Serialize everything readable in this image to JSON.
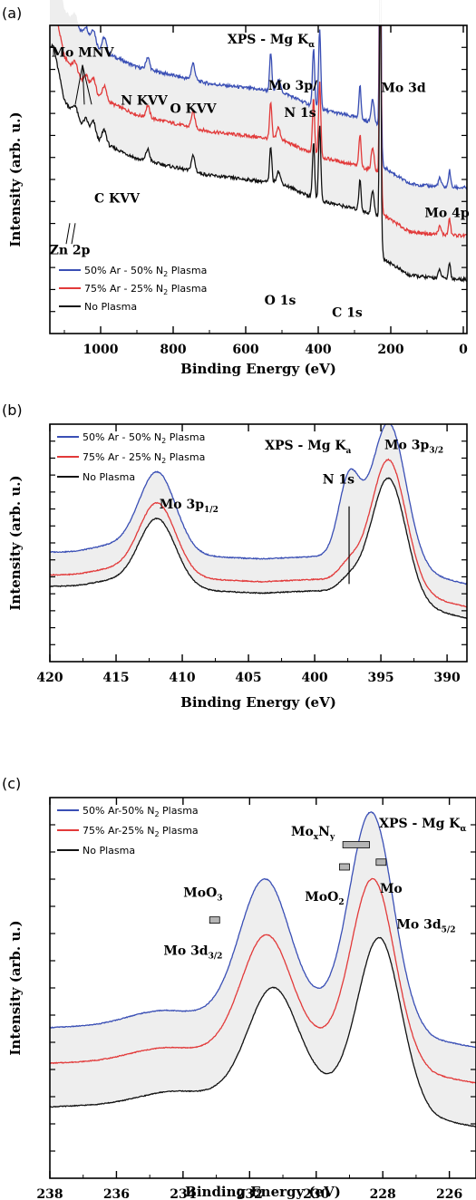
{
  "colors": {
    "blue": "#3a4fb5",
    "red": "#e23a3a",
    "black": "#111111"
  },
  "chart_data": [
    {
      "panel_label": "(a)",
      "type": "line",
      "title": "XPS - Mg K",
      "title_sub": "α",
      "xlabel": "Binding Energy (eV)",
      "ylabel": "Intensity (arb. u.)",
      "xlim": [
        1140,
        -10
      ],
      "x_reversed": true,
      "xticks": [
        1000,
        800,
        600,
        400,
        200,
        0
      ],
      "legend_position": "bottom-left",
      "legend": [
        {
          "pre": "50% Ar - 50% N",
          "sub": "2",
          "post": " Plasma",
          "color": "#3a4fb5"
        },
        {
          "pre": "75% Ar - 25% N",
          "sub": "2",
          "post": " Plasma",
          "color": "#e23a3a"
        },
        {
          "pre": "No Plasma",
          "sub": "",
          "post": "",
          "color": "#111111"
        }
      ],
      "series": [
        {
          "color": "#3a4fb5",
          "offset": 2.2,
          "peakScale": 1.0,
          "noise": 0.08
        },
        {
          "color": "#e23a3a",
          "offset": 1.05,
          "peakScale": 0.95,
          "noise": 0.08
        },
        {
          "color": "#111111",
          "offset": 0.0,
          "peakScale": 0.95,
          "noise": 0.08
        }
      ],
      "ylim": [
        -0.6,
        6.8
      ],
      "baseline": [
        [
          1130,
          6.3
        ],
        [
          1100,
          5.0
        ],
        [
          1050,
          4.4
        ],
        [
          1000,
          4.0
        ],
        [
          900,
          3.6
        ],
        [
          800,
          3.4
        ],
        [
          700,
          3.2
        ],
        [
          600,
          3.1
        ],
        [
          500,
          3.0
        ],
        [
          400,
          2.6
        ],
        [
          300,
          2.4
        ],
        [
          230,
          2.2
        ],
        [
          220,
          1.2
        ],
        [
          150,
          0.8
        ],
        [
          100,
          0.75
        ],
        [
          50,
          0.72
        ],
        [
          0,
          0.7
        ]
      ],
      "peaks": [
        {
          "c": 1070,
          "a": 0.25,
          "w": 6
        },
        {
          "c": 1040,
          "a": 0.25,
          "w": 6
        },
        {
          "c": 1020,
          "a": 0.35,
          "w": 6
        },
        {
          "c": 990,
          "a": 0.35,
          "w": 6
        },
        {
          "c": 870,
          "a": 0.3,
          "w": 5
        },
        {
          "c": 745,
          "a": 0.4,
          "w": 5
        },
        {
          "c": 531,
          "a": 0.9,
          "w": 3
        },
        {
          "c": 510,
          "a": 0.3,
          "w": 5
        },
        {
          "c": 413,
          "a": 1.4,
          "w": 3
        },
        {
          "c": 396,
          "a": 1.9,
          "w": 3
        },
        {
          "c": 285,
          "a": 0.8,
          "w": 3
        },
        {
          "c": 250,
          "a": 0.6,
          "w": 4
        },
        {
          "c": 230,
          "a": 4.2,
          "w": 1.8
        },
        {
          "c": 228,
          "a": 4.0,
          "w": 1.8
        },
        {
          "c": 65,
          "a": 0.2,
          "w": 4
        },
        {
          "c": 38,
          "a": 0.4,
          "w": 3
        }
      ],
      "annotations": [
        {
          "label": "Mo MNV",
          "sub": "",
          "suffix": "",
          "x": 1050,
          "y": 6.05
        },
        {
          "label": "N KVV",
          "sub": "",
          "suffix": "",
          "x": 880,
          "y": 4.9
        },
        {
          "label": "O KVV",
          "sub": "",
          "suffix": "",
          "x": 745,
          "y": 4.7
        },
        {
          "label": "Mo 3p/",
          "sub": "",
          "suffix": "",
          "x": 470,
          "y": 5.25
        },
        {
          "label": "N 1s",
          "sub": "",
          "suffix": "",
          "x": 450,
          "y": 4.6
        },
        {
          "label": "Mo 3d",
          "sub": "",
          "suffix": "",
          "x": 165,
          "y": 5.2
        },
        {
          "label": "C KVV",
          "sub": "",
          "suffix": "",
          "x": 955,
          "y": 2.55
        },
        {
          "label": "Zn 2p",
          "sub": "",
          "suffix": "",
          "x": 1085,
          "y": 1.3
        },
        {
          "label": "Mo 4p",
          "sub": "",
          "suffix": "",
          "x": 45,
          "y": 2.2
        },
        {
          "label": "O 1s",
          "sub": "",
          "suffix": "",
          "x": 505,
          "y": 0.1
        },
        {
          "label": "C 1s",
          "sub": "",
          "suffix": "",
          "x": 320,
          "y": -0.2
        }
      ]
    },
    {
      "panel_label": "(b)",
      "type": "line",
      "title": "XPS - Mg K",
      "title_sub": "a",
      "xlabel": "Binding Energy (eV)",
      "ylabel": "Intensity (arb. u.)",
      "xlim": [
        420,
        388.5
      ],
      "x_reversed": true,
      "xticks": [
        420,
        415,
        410,
        405,
        400,
        395,
        390
      ],
      "legend_position": "top-left",
      "legend": [
        {
          "pre": "50% Ar - 50% N",
          "sub": "2",
          "post": " Plasma",
          "color": "#3a4fb5"
        },
        {
          "pre": "75% Ar - 25% N",
          "sub": "2",
          "post": " Plasma",
          "color": "#e23a3a"
        },
        {
          "pre": "No Plasma",
          "sub": "",
          "post": "",
          "color": "#111111"
        }
      ],
      "series": [
        {
          "color": "#3a4fb5",
          "offset": 1.0,
          "peakScale": 1.0,
          "nPeak": 1.0,
          "noise": 0.02
        },
        {
          "color": "#e23a3a",
          "offset": 0.5,
          "peakScale": 0.9,
          "nPeak": 0.2,
          "noise": 0.02
        },
        {
          "color": "#111111",
          "offset": 0.25,
          "peakScale": 0.85,
          "nPeak": 0.15,
          "noise": 0.02
        }
      ],
      "ylim": [
        -0.8,
        4.4
      ],
      "baseline": [
        [
          420,
          0.6
        ],
        [
          412,
          0.55
        ],
        [
          404,
          0.45
        ],
        [
          400,
          0.5
        ],
        [
          396,
          0.45
        ],
        [
          390,
          0.0
        ],
        [
          388.5,
          -0.1
        ]
      ],
      "peaks": [
        {
          "c": 411.9,
          "a": 1.8,
          "w": 1.4
        },
        {
          "c": 394.4,
          "a": 3.1,
          "w": 1.3
        },
        {
          "c": 397.4,
          "a": 1.7,
          "w": 0.8,
          "type": "n"
        },
        {
          "c": 415.5,
          "a": 0.15,
          "w": 1.5
        }
      ],
      "marker_line": {
        "x": 397.4,
        "y0": 0.9,
        "y1": 2.6
      },
      "annotations": [
        {
          "label": "Mo 3p",
          "sub": "1/2",
          "suffix": "",
          "x": 409.5,
          "y": 2.55
        },
        {
          "label": "N 1s",
          "sub": "",
          "suffix": "",
          "x": 398.2,
          "y": 3.1
        },
        {
          "label": "Mo 3p",
          "sub": "3/2",
          "suffix": "",
          "x": 392.5,
          "y": 3.85
        }
      ]
    },
    {
      "panel_label": "(c)",
      "type": "line",
      "title": "XPS - Mg K",
      "title_sub": "α",
      "xlabel": "Binding Energy (eV)",
      "ylabel": "Intensity (arb. u.)",
      "xlim": [
        238,
        225.2
      ],
      "x_reversed": true,
      "xticks": [
        238,
        236,
        234,
        232,
        230,
        228,
        226
      ],
      "legend_position": "top-left",
      "legend": [
        {
          "pre": "50% Ar-50% N",
          "sub": "2",
          "post": " Plasma",
          "color": "#3a4fb5"
        },
        {
          "pre": "75% Ar-25% N",
          "sub": "2",
          "post": " Plasma",
          "color": "#e23a3a"
        },
        {
          "pre": "No Plasma",
          "sub": "",
          "post": "",
          "color": "#111111"
        }
      ],
      "series": [
        {
          "color": "#3a4fb5",
          "offset": 1.0,
          "peakScale": 1.0,
          "shift": 0.0,
          "noise": 0.01
        },
        {
          "color": "#e23a3a",
          "offset": 0.55,
          "peakScale": 0.85,
          "shift": 0.05,
          "noise": 0.01
        },
        {
          "color": "#111111",
          "offset": 0.0,
          "peakScale": 0.78,
          "shift": 0.25,
          "noise": 0.01
        }
      ],
      "ylim": [
        -0.6,
        4.2
      ],
      "baseline": [
        [
          238,
          0.3
        ],
        [
          235,
          0.35
        ],
        [
          233,
          0.45
        ],
        [
          230,
          0.5
        ],
        [
          228,
          0.4
        ],
        [
          226.5,
          0.15
        ],
        [
          225.2,
          0.05
        ]
      ],
      "peaks": [
        {
          "c": 231.55,
          "a": 1.7,
          "w": 0.75
        },
        {
          "c": 228.35,
          "a": 2.6,
          "w": 0.65
        },
        {
          "c": 234.8,
          "a": 0.15,
          "w": 0.9
        }
      ],
      "bars": [
        {
          "name": "MoO3",
          "x0": 233.2,
          "x1": 232.9,
          "y": 2.65
        },
        {
          "name": "MoxNy",
          "x0": 229.2,
          "x1": 228.4,
          "y": 3.6
        },
        {
          "name": "MoO2",
          "x0": 229.3,
          "x1": 229.0,
          "y": 3.32
        },
        {
          "name": "Mo",
          "x0": 228.2,
          "x1": 227.9,
          "y": 3.38
        }
      ],
      "annotations": [
        {
          "label": "Mo",
          "sub": "x",
          "suffix": "N",
          "sub2": "y",
          "x": 230.1,
          "y": 3.72
        },
        {
          "label": "MoO",
          "sub": "2",
          "suffix": "",
          "x": 229.75,
          "y": 2.9
        },
        {
          "label": "Mo",
          "sub": "",
          "suffix": "",
          "x": 227.75,
          "y": 3.0
        },
        {
          "label": "MoO",
          "sub": "3",
          "suffix": "",
          "x": 233.4,
          "y": 2.95
        },
        {
          "label": "Mo 3d",
          "sub": "3/2",
          "suffix": "",
          "x": 233.7,
          "y": 2.22
        },
        {
          "label": "Mo 3d",
          "sub": "5/2",
          "suffix": "",
          "x": 226.7,
          "y": 2.55
        }
      ]
    }
  ]
}
